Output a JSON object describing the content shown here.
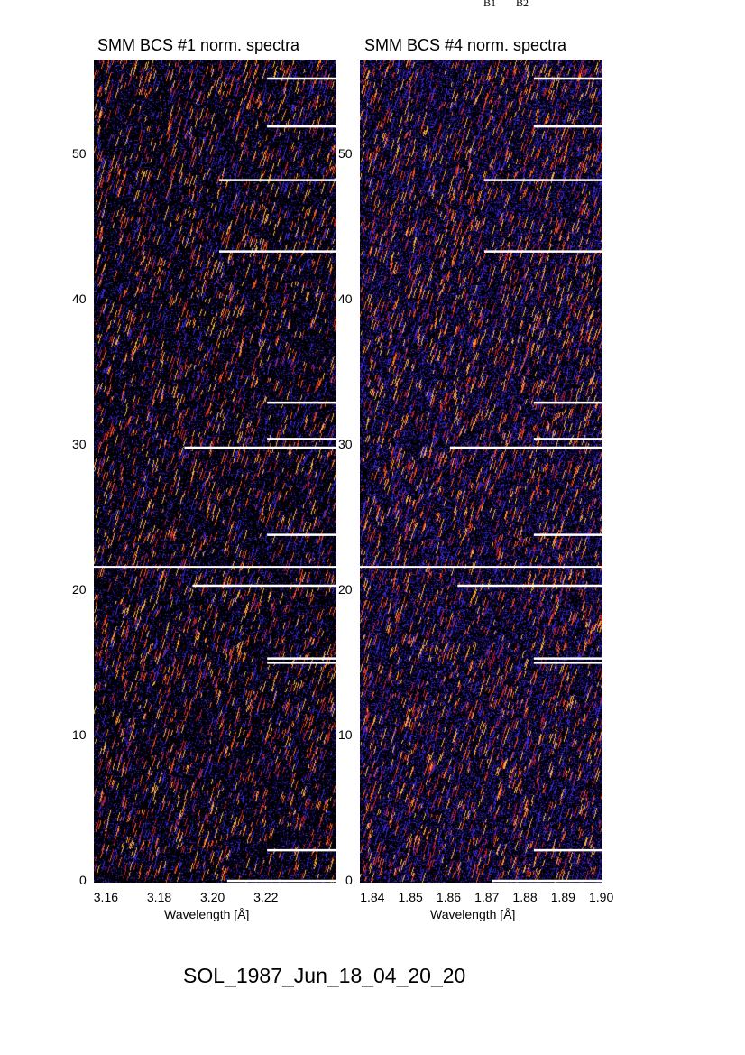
{
  "header_labels": [
    "B1",
    "B2"
  ],
  "footer_title": "SOL_1987_Jun_18_04_20_20",
  "chart_data": [
    {
      "type": "heatmap",
      "title": "SMM BCS #1 norm. spectra",
      "xlabel": "Wavelength [Å]",
      "ylabel": "",
      "xlim": [
        3.155,
        3.246
      ],
      "ylim": [
        0,
        56.5
      ],
      "xticks": [
        "3.16",
        "3.18",
        "3.20",
        "3.22"
      ],
      "xtick_values": [
        3.16,
        3.18,
        3.2,
        3.22
      ],
      "yticks": [
        "0",
        "10",
        "20",
        "30",
        "40",
        "50"
      ],
      "colormap": [
        "#000000",
        "#1a0a5c",
        "#3a2ad8",
        "#c0202a",
        "#ff5a10",
        "#ffb040"
      ],
      "divider_y": 21.6,
      "markers": [
        {
          "y": 55.2,
          "x_start": 3.22
        },
        {
          "y": 51.9,
          "x_start": 3.22
        },
        {
          "y": 48.2,
          "x_start": 3.202
        },
        {
          "y": 43.3,
          "x_start": 3.202
        },
        {
          "y": 32.9,
          "x_start": 3.22
        },
        {
          "y": 30.4,
          "x_start": 3.22
        },
        {
          "y": 29.8,
          "x_start": 3.189
        },
        {
          "y": 23.8,
          "x_start": 3.22
        },
        {
          "y": 20.3,
          "x_start": 3.192
        },
        {
          "y": 15.3,
          "x_start": 3.22
        },
        {
          "y": 15.0,
          "x_start": 3.22
        },
        {
          "y": 2.1,
          "x_start": 3.22
        },
        {
          "y": 0.0,
          "x_start": 3.205
        }
      ],
      "intensity": 0.38
    },
    {
      "type": "heatmap",
      "title": "SMM BCS #4 norm. spectra",
      "xlabel": "Wavelength [Å]",
      "ylabel": "",
      "xlim": [
        1.8364,
        1.9
      ],
      "ylim": [
        0,
        56.5
      ],
      "xticks": [
        "1.84",
        "1.85",
        "1.86",
        "1.87",
        "1.88",
        "1.89",
        "1.90"
      ],
      "xtick_values": [
        1.84,
        1.85,
        1.86,
        1.87,
        1.88,
        1.89,
        1.9
      ],
      "yticks": [
        "0",
        "10",
        "20",
        "30",
        "40",
        "50"
      ],
      "colormap": [
        "#000000",
        "#1a0a5c",
        "#3a2ad8",
        "#c0202a",
        "#ff5a10",
        "#ffb040"
      ],
      "divider_y": 21.6,
      "markers": [
        {
          "y": 55.2,
          "x_start": 1.882
        },
        {
          "y": 51.9,
          "x_start": 1.882
        },
        {
          "y": 48.2,
          "x_start": 1.869
        },
        {
          "y": 43.3,
          "x_start": 1.869
        },
        {
          "y": 32.9,
          "x_start": 1.882
        },
        {
          "y": 30.4,
          "x_start": 1.882
        },
        {
          "y": 29.8,
          "x_start": 1.86
        },
        {
          "y": 23.8,
          "x_start": 1.882
        },
        {
          "y": 20.3,
          "x_start": 1.862
        },
        {
          "y": 15.3,
          "x_start": 1.882
        },
        {
          "y": 15.0,
          "x_start": 1.882
        },
        {
          "y": 2.1,
          "x_start": 1.882
        },
        {
          "y": 0.0,
          "x_start": 1.871
        }
      ],
      "intensity": 0.62
    }
  ]
}
